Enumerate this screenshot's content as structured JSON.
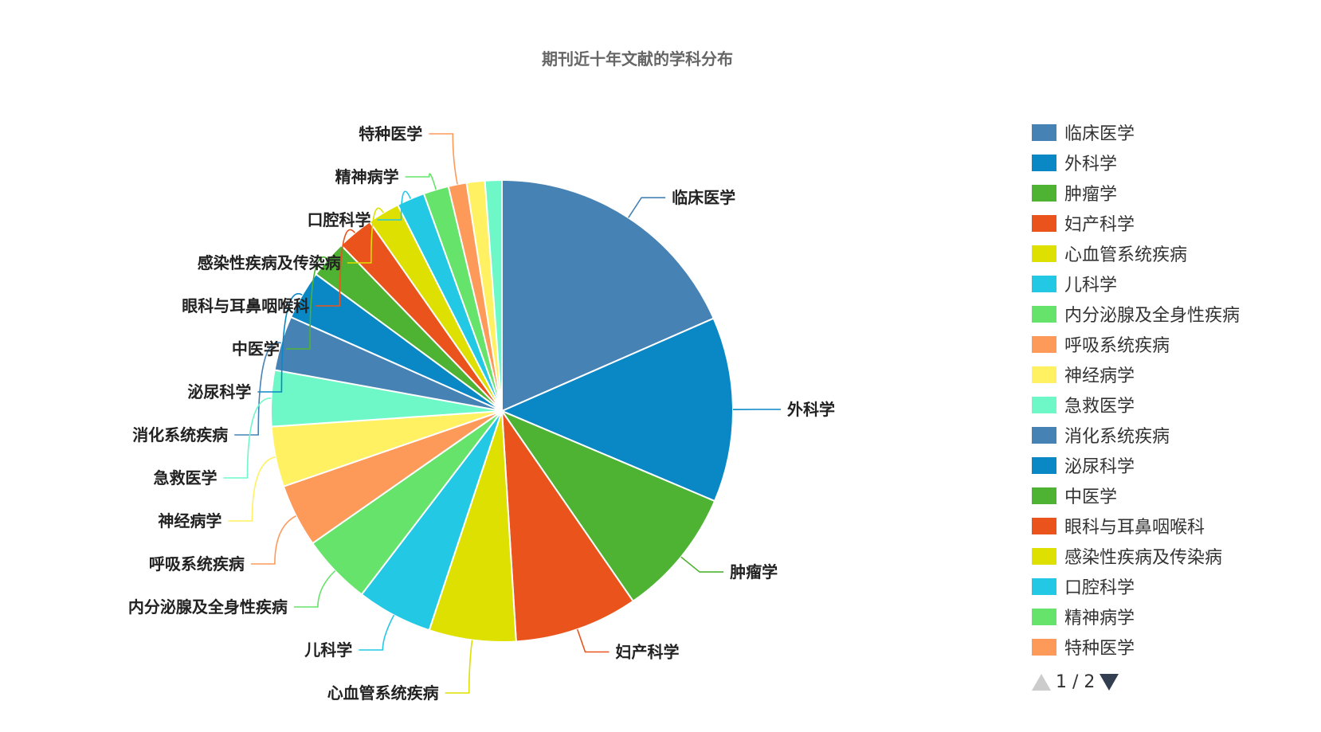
{
  "chart_data": {
    "type": "pie",
    "title": "期刊近十年文献的学科分布",
    "slices": [
      {
        "label": "临床医学",
        "value": 18.8,
        "color": "#4682b4"
      },
      {
        "label": "外科学",
        "value": 13.2,
        "color": "#0a88c6"
      },
      {
        "label": "肿瘤学",
        "value": 9.2,
        "color": "#4eb233"
      },
      {
        "label": "妇产科学",
        "value": 8.8,
        "color": "#ea541c"
      },
      {
        "label": "心血管系统疾病",
        "value": 6.2,
        "color": "#dde000"
      },
      {
        "label": "儿科学",
        "value": 5.4,
        "color": "#23c8e4"
      },
      {
        "label": "内分泌腺及全身性疾病",
        "value": 5.0,
        "color": "#66e36a"
      },
      {
        "label": "呼吸系统疾病",
        "value": 4.5,
        "color": "#fd9a5a"
      },
      {
        "label": "神经病学",
        "value": 4.3,
        "color": "#fff162"
      },
      {
        "label": "急救医学",
        "value": 4.0,
        "color": "#6ef8c7"
      },
      {
        "label": "消化系统疾病",
        "value": 3.9,
        "color": "#4682b4"
      },
      {
        "label": "泌尿科学",
        "value": 3.5,
        "color": "#0a88c6"
      },
      {
        "label": "中医学",
        "value": 2.7,
        "color": "#4eb233"
      },
      {
        "label": "眼科与耳鼻咽喉科",
        "value": 2.6,
        "color": "#ea541c"
      },
      {
        "label": "感染性疾病及传染病",
        "value": 2.3,
        "color": "#dde000"
      },
      {
        "label": "口腔科学",
        "value": 2.0,
        "color": "#23c8e4"
      },
      {
        "label": "精神病学",
        "value": 1.8,
        "color": "#66e36a"
      },
      {
        "label": "特种医学",
        "value": 1.3,
        "color": "#fd9a5a"
      },
      {
        "label": "",
        "value": 1.3,
        "color": "#fff162"
      },
      {
        "label": "",
        "value": 1.2,
        "color": "#6ef8c7"
      }
    ],
    "legend_position": "right",
    "legend_page": "1 / 2"
  }
}
